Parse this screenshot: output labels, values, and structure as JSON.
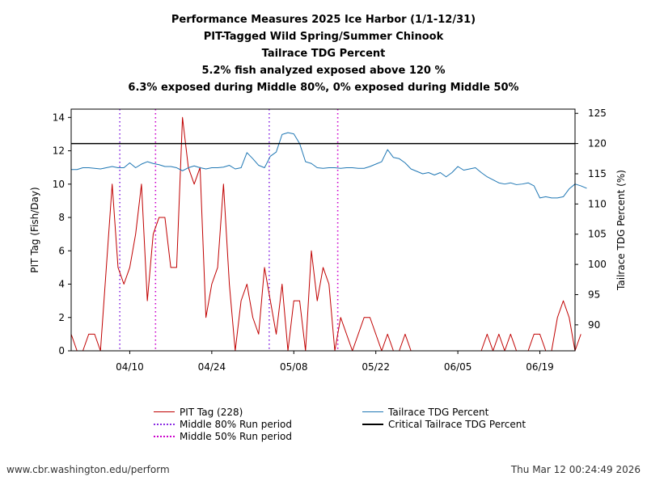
{
  "title_lines": [
    "Performance Measures 2025 Ice Harbor (1/1-12/31)",
    "PIT-Tagged Wild Spring/Summer Chinook",
    "Tailrace TDG Percent",
    "5.2% fish analyzed exposed above 120 %",
    "6.3% exposed during Middle 80%, 0% exposed during Middle 50%"
  ],
  "legend": {
    "pit": "PIT Tag (228)",
    "mid80": "Middle 80% Run period",
    "mid50": "Middle 50% Run period",
    "tdg": "Tailrace TDG Percent",
    "critical": "Critical Tailrace TDG Percent"
  },
  "footer": {
    "left": "www.cbr.washington.edu/perform",
    "right": "Thu Mar 12 00:24:49 2026"
  },
  "colors": {
    "pit": "#c00000",
    "tdg": "#1f77b4",
    "critical": "#000000",
    "mid80": "#8a2be2",
    "mid50": "#cc00cc"
  },
  "chart_data": {
    "type": "line",
    "x_start_date": "2025-03-31",
    "x_range_days": [
      0,
      86
    ],
    "x_ticks": [
      {
        "day": 10,
        "label": "04/10"
      },
      {
        "day": 24,
        "label": "04/24"
      },
      {
        "day": 38,
        "label": "05/08"
      },
      {
        "day": 52,
        "label": "05/22"
      },
      {
        "day": 66,
        "label": "06/05"
      },
      {
        "day": 80,
        "label": "06/19"
      }
    ],
    "y_left": {
      "label": "PIT Tag (Fish/Day)",
      "lim": [
        0,
        14.5
      ],
      "ticks": [
        0,
        2,
        4,
        6,
        8,
        10,
        12,
        14
      ]
    },
    "y_right": {
      "label": "Tailrace TDG Percent (%)",
      "lim": [
        85.7,
        125.7
      ],
      "ticks": [
        90,
        95,
        100,
        105,
        110,
        115,
        120,
        125
      ]
    },
    "critical_tdg": 120,
    "middle80_days": [
      8.3,
      33.8
    ],
    "middle50_days": [
      14.4,
      45.5
    ],
    "series": [
      {
        "name": "PIT Tag (228)",
        "axis": "left",
        "values": [
          1,
          0,
          0,
          1,
          1,
          0,
          5,
          10,
          5,
          4,
          5,
          7,
          10,
          3,
          7,
          8,
          8,
          5,
          5,
          14,
          11,
          10,
          11,
          2,
          4,
          5,
          10,
          4,
          0,
          3,
          4,
          2,
          1,
          5,
          3,
          1,
          4,
          0,
          3,
          3,
          0,
          6,
          3,
          5,
          4,
          0,
          2,
          1,
          0,
          1,
          2,
          2,
          1,
          0,
          1,
          0,
          0,
          1,
          0,
          0,
          0,
          0,
          0,
          0,
          0,
          0,
          0,
          0,
          0,
          0,
          0,
          1,
          0,
          1,
          0,
          1,
          0,
          0,
          0,
          1,
          1,
          0,
          0,
          2,
          3,
          2,
          0,
          1
        ]
      },
      {
        "name": "Tailrace TDG Percent",
        "axis": "right",
        "values": [
          115.7,
          115.7,
          116,
          116,
          115.9,
          115.8,
          116,
          116.2,
          116,
          116,
          116.8,
          116,
          116.6,
          117,
          116.7,
          116.5,
          116.2,
          116.2,
          116,
          115.5,
          116,
          116.3,
          116,
          115.8,
          116,
          116,
          116.1,
          116.4,
          115.8,
          116,
          118.5,
          117.5,
          116.4,
          116,
          117.9,
          118.6,
          121.5,
          121.8,
          121.6,
          120,
          117,
          116.7,
          116,
          115.9,
          116,
          116,
          115.9,
          116,
          116,
          115.9,
          115.9,
          116.2,
          116.6,
          117,
          119,
          117.7,
          117.5,
          116.8,
          115.8,
          115.4,
          115,
          115.2,
          114.8,
          115.2,
          114.5,
          115.2,
          116.2,
          115.6,
          115.8,
          116,
          115.2,
          114.5,
          114,
          113.5,
          113.3,
          113.5,
          113.2,
          113.3,
          113.5,
          113,
          111,
          111.2,
          111,
          111,
          111.2,
          112.5,
          113.3,
          113,
          112.6
        ]
      }
    ]
  }
}
